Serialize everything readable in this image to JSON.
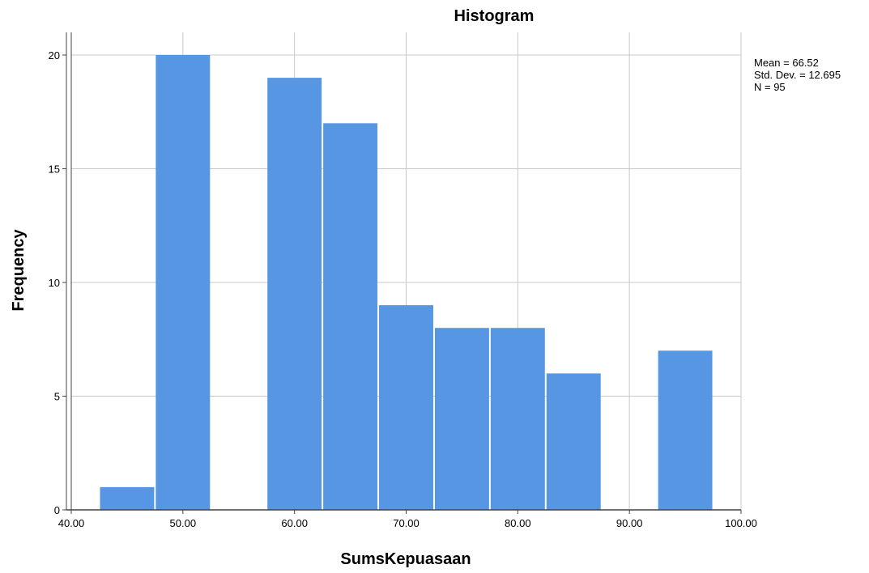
{
  "chart_data": {
    "type": "bar",
    "title": "Histogram",
    "xlabel": "SumsKepuasaan",
    "ylabel": "Frequency",
    "xlim": [
      40,
      100
    ],
    "ylim": [
      0,
      20
    ],
    "bin_width": 5,
    "bins": [
      {
        "start": 42.5,
        "end": 47.5,
        "count": 1
      },
      {
        "start": 47.5,
        "end": 52.5,
        "count": 20
      },
      {
        "start": 52.5,
        "end": 57.5,
        "count": 0
      },
      {
        "start": 57.5,
        "end": 62.5,
        "count": 19
      },
      {
        "start": 62.5,
        "end": 67.5,
        "count": 17
      },
      {
        "start": 67.5,
        "end": 72.5,
        "count": 9
      },
      {
        "start": 72.5,
        "end": 77.5,
        "count": 8
      },
      {
        "start": 77.5,
        "end": 82.5,
        "count": 8
      },
      {
        "start": 82.5,
        "end": 87.5,
        "count": 6
      },
      {
        "start": 87.5,
        "end": 92.5,
        "count": 0
      },
      {
        "start": 92.5,
        "end": 97.5,
        "count": 7
      }
    ],
    "x_ticks": [
      "40.00",
      "50.00",
      "60.00",
      "70.00",
      "80.00",
      "90.00",
      "100.00"
    ],
    "y_ticks": [
      "0",
      "5",
      "10",
      "15",
      "20"
    ],
    "stats": [
      "Mean = 66.52",
      "Std. Dev. = 12.695",
      "N = 95"
    ],
    "grid": true,
    "colors": {
      "bar": "#5796e2",
      "grid": "#c8c8c8",
      "axis": "#444444"
    }
  }
}
